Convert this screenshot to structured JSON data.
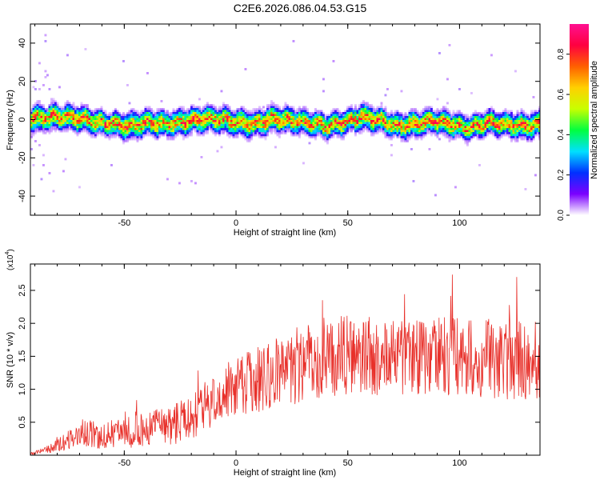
{
  "title": "C2E6.2026.086.04.53.G15",
  "colors": {
    "snr_line": "#e8302a",
    "axis": "#000000"
  },
  "chart_data": [
    {
      "type": "heatmap",
      "xlabel": "Height of straight line (km)",
      "ylabel": "Frequency (Hz)",
      "xlim": [
        -92,
        136
      ],
      "ylim": [
        -50,
        50
      ],
      "x_ticks": [
        -50,
        0,
        50,
        100
      ],
      "x_tick_labels": [
        "-50",
        "0",
        "50",
        "100"
      ],
      "y_ticks": [
        40,
        20,
        0,
        -20,
        -40
      ],
      "y_tick_labels": [
        "40",
        "20",
        "0",
        "-20",
        "-40"
      ],
      "grid": false,
      "ridge": {
        "description_free": true,
        "x": [
          -90,
          -80,
          -70,
          -62,
          -55,
          -48,
          -40,
          -30,
          -20,
          -12,
          -5,
          0,
          8,
          16,
          24,
          32,
          40,
          48,
          56,
          64,
          72,
          80,
          88,
          96,
          104,
          112,
          120,
          128,
          135
        ],
        "y": [
          1,
          2,
          1,
          -1,
          -2,
          -3,
          -1,
          -2,
          0,
          1,
          0,
          -1,
          -2,
          1,
          0,
          -1,
          -3,
          -1,
          2,
          0,
          -3,
          -2,
          0,
          -2,
          -4,
          -1,
          -2,
          -3,
          -2
        ]
      },
      "colorbar": {
        "label": "Normalized spectral amplitude",
        "range": [
          0,
          0.95
        ],
        "ticks": [
          0.0,
          0.2,
          0.4,
          0.6,
          0.8
        ],
        "tick_labels": [
          "0.0",
          "0.2",
          "0.4",
          "0.6",
          "0.8"
        ],
        "colors": [
          "#ffffff",
          "#7b00ff",
          "#0030ff",
          "#00e0ff",
          "#00ff40",
          "#c8ff00",
          "#ffd000",
          "#ff6000",
          "#ff0040",
          "#ff1090"
        ]
      }
    },
    {
      "type": "line",
      "xlabel": "Height of straight line (km)",
      "ylabel": "SNR (10 * v/v)",
      "y_scale_label": "(x10",
      "y_scale_exp": "4",
      "y_scale_close": ")",
      "xlim": [
        -92,
        136
      ],
      "ylim": [
        0,
        2.9
      ],
      "x_ticks": [
        -50,
        0,
        50,
        100
      ],
      "x_tick_labels": [
        "-50",
        "0",
        "50",
        "100"
      ],
      "y_ticks": [
        0.5,
        1.0,
        1.5,
        2.0,
        2.5
      ],
      "y_tick_labels": [
        "0.5",
        "1.0",
        "1.5",
        "2.0",
        "2.5"
      ],
      "grid": false,
      "series": [
        {
          "envelope_x": [
            -92,
            -85,
            -75,
            -68,
            -60,
            -50,
            -40,
            -30,
            -20,
            -12,
            -5,
            0,
            10,
            20,
            30,
            40,
            50,
            60,
            70,
            80,
            90,
            100,
            110,
            120,
            130,
            136
          ],
          "envelope_mean": [
            0.02,
            0.08,
            0.22,
            0.35,
            0.3,
            0.35,
            0.42,
            0.45,
            0.55,
            0.8,
            0.95,
            1.05,
            1.15,
            1.25,
            1.4,
            1.5,
            1.52,
            1.5,
            1.5,
            1.48,
            1.5,
            1.5,
            1.48,
            1.45,
            1.45,
            1.4
          ],
          "envelope_spread": [
            0.02,
            0.05,
            0.15,
            0.25,
            0.2,
            0.25,
            0.28,
            0.3,
            0.35,
            0.4,
            0.42,
            0.45,
            0.5,
            0.55,
            0.6,
            0.62,
            0.6,
            0.6,
            0.6,
            0.6,
            0.6,
            0.6,
            0.6,
            0.6,
            0.62,
            0.6
          ]
        }
      ]
    }
  ]
}
